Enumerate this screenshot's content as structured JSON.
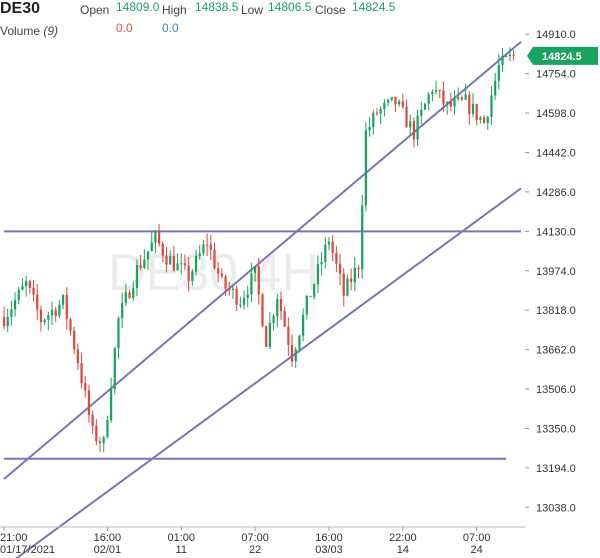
{
  "header": {
    "symbol": "DE30",
    "open_label": "Open",
    "open_value": "14809.0",
    "high_label": "High",
    "high_value": "14838.5",
    "low_label": "Low",
    "low_value": "14806.5",
    "close_label": "Close",
    "close_value": "14824.5",
    "volume_label": "Volume",
    "volume_param": "(9)",
    "volume_val_1": "0.0",
    "volume_val_2": "0.0"
  },
  "watermark": "DE30 4H",
  "price_tag": "14824.5",
  "colors": {
    "up": "#1aa260",
    "down": "#e0463c",
    "line": "#7b74b8",
    "tag": "#1aa260"
  },
  "chart_data": {
    "type": "candlestick",
    "y_ticks": [
      "14910.0",
      "14754.0",
      "14598.0",
      "14442.0",
      "14286.0",
      "14130.0",
      "13974.0",
      "13818.0",
      "13662.0",
      "13506.0",
      "13350.0",
      "13194.0",
      "13038.0"
    ],
    "ylim": [
      12960,
      14990
    ],
    "x_ticks": [
      {
        "t": "21:00",
        "d": "01/17/2021",
        "i": 0
      },
      {
        "t": "16:00",
        "d": "02/01",
        "i": 28
      },
      {
        "t": "01:00",
        "d": "11",
        "i": 48
      },
      {
        "t": "07:00",
        "d": "22",
        "i": 68
      },
      {
        "t": "16:00",
        "d": "03/03",
        "i": 88
      },
      {
        "t": "22:00",
        "d": "14",
        "i": 108
      },
      {
        "t": "07:00",
        "d": "24",
        "i": 128
      }
    ],
    "x_count": 140,
    "trendlines": [
      {
        "i1": 0,
        "v1": 13150,
        "i2": 140,
        "v2": 14880
      },
      {
        "i1": 0,
        "v1": 12800,
        "i2": 140,
        "v2": 14300
      },
      {
        "i1": 0,
        "v1": 14130,
        "i2": 140,
        "v2": 14130
      },
      {
        "i1": 0,
        "v1": 13230,
        "i2": 136,
        "v2": 13230
      }
    ],
    "close_keypoints": [
      [
        0,
        13790
      ],
      [
        6,
        13920
      ],
      [
        10,
        13780
      ],
      [
        16,
        13850
      ],
      [
        20,
        13620
      ],
      [
        24,
        13330
      ],
      [
        27,
        13290
      ],
      [
        31,
        13780
      ],
      [
        36,
        13980
      ],
      [
        41,
        14100
      ],
      [
        44,
        14030
      ],
      [
        50,
        13950
      ],
      [
        55,
        14090
      ],
      [
        59,
        13920
      ],
      [
        64,
        13860
      ],
      [
        68,
        13960
      ],
      [
        71,
        13700
      ],
      [
        74,
        13880
      ],
      [
        78,
        13640
      ],
      [
        82,
        13840
      ],
      [
        88,
        14100
      ],
      [
        92,
        13880
      ],
      [
        96,
        14000
      ],
      [
        98,
        14520
      ],
      [
        101,
        14600
      ],
      [
        106,
        14640
      ],
      [
        111,
        14520
      ],
      [
        116,
        14700
      ],
      [
        120,
        14620
      ],
      [
        125,
        14640
      ],
      [
        130,
        14560
      ],
      [
        134,
        14780
      ],
      [
        138,
        14824.5
      ]
    ]
  }
}
